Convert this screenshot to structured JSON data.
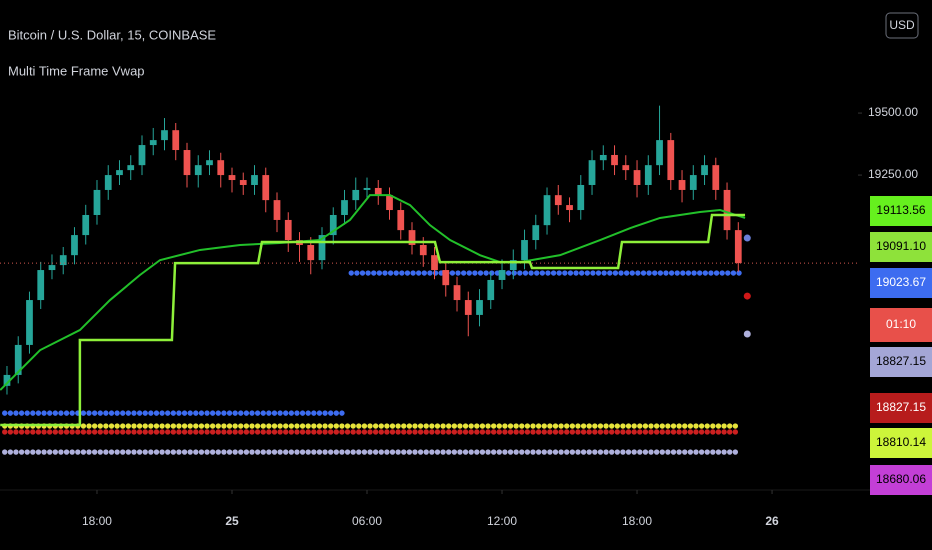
{
  "chart_data": {
    "type": "candlestick",
    "title": "Bitcoin / U.S. Dollar, 15, COINBASE",
    "subtitle": "Multi Time Frame Vwap",
    "currency_button": "USD",
    "xlim": [
      13.69,
      51.82
    ],
    "xticks": [
      {
        "value": 18,
        "label": "18:00"
      },
      {
        "value": 24,
        "label": "25"
      },
      {
        "value": 30,
        "label": "06:00"
      },
      {
        "value": 36,
        "label": "12:00"
      },
      {
        "value": 42,
        "label": "18:00"
      },
      {
        "value": 48,
        "label": "26"
      }
    ],
    "ylim": [
      17980,
      19956
    ],
    "yticks": [
      {
        "value": 19250,
        "label": "19250.00"
      },
      {
        "value": 19500,
        "label": "19500.00"
      }
    ],
    "up_color": "#26a69a",
    "down_color": "#ef5350",
    "candles": {
      "x": [
        14,
        14.5,
        15,
        15.5,
        16,
        16.5,
        17,
        17.5,
        18,
        18.5,
        19,
        19.5,
        20,
        20.5,
        21,
        21.5,
        22,
        22.5,
        23,
        23.5,
        24,
        24.5,
        25,
        25.5,
        26,
        26.5,
        27,
        27.5,
        28,
        28.5,
        29,
        29.5,
        30,
        30.5,
        31,
        31.5,
        32,
        32.5,
        33,
        33.5,
        34,
        34.5,
        35,
        35.5,
        36,
        36.5,
        37,
        37.5,
        38,
        38.5,
        39,
        39.5,
        40,
        40.5,
        41,
        41.5,
        42,
        42.5,
        43,
        43.5,
        44,
        44.5,
        45,
        45.5,
        46,
        46.5
      ],
      "open": [
        18400,
        18444,
        18565,
        18746,
        18867,
        18887,
        18927,
        19008,
        19089,
        19190,
        19250,
        19270,
        19290,
        19371,
        19391,
        19431,
        19351,
        19250,
        19290,
        19310,
        19250,
        19230,
        19210,
        19250,
        19149,
        19069,
        18988,
        18968,
        18907,
        19008,
        19089,
        19149,
        19190,
        19198,
        19169,
        19109,
        19028,
        18968,
        18927,
        18867,
        18806,
        18746,
        18686,
        18746,
        18827,
        18867,
        18907,
        18988,
        19048,
        19169,
        19129,
        19109,
        19210,
        19310,
        19331,
        19290,
        19270,
        19210,
        19290,
        19391,
        19230,
        19190,
        19250,
        19290,
        19190,
        19028
      ],
      "high": [
        18480,
        18600,
        18780,
        18900,
        18930,
        18960,
        19040,
        19130,
        19230,
        19290,
        19310,
        19330,
        19410,
        19440,
        19480,
        19460,
        19380,
        19330,
        19350,
        19340,
        19280,
        19260,
        19290,
        19280,
        19180,
        19100,
        19020,
        19000,
        19040,
        19120,
        19190,
        19240,
        19240,
        19230,
        19200,
        19140,
        19060,
        19000,
        18960,
        18900,
        18840,
        18780,
        18790,
        18860,
        18910,
        18950,
        19030,
        19090,
        19200,
        19210,
        19160,
        19250,
        19350,
        19370,
        19370,
        19330,
        19310,
        19330,
        19530,
        19420,
        19270,
        19290,
        19330,
        19320,
        19220,
        19060
      ],
      "low": [
        18365,
        18410,
        18530,
        18710,
        18830,
        18850,
        18890,
        18970,
        19050,
        19150,
        19210,
        19230,
        19250,
        19330,
        19350,
        19310,
        19200,
        19200,
        19250,
        19200,
        19180,
        19170,
        19170,
        19100,
        19020,
        18940,
        18900,
        18850,
        18870,
        18970,
        19050,
        19110,
        19150,
        19130,
        19070,
        18990,
        18930,
        18880,
        18830,
        18760,
        18700,
        18600,
        18640,
        18710,
        18790,
        18830,
        18870,
        18950,
        19010,
        19090,
        19060,
        19070,
        19170,
        19270,
        19250,
        19230,
        19160,
        19170,
        19250,
        19190,
        19140,
        19150,
        19210,
        19150,
        18990,
        18860
      ],
      "close": [
        18444,
        18565,
        18746,
        18867,
        18887,
        18927,
        19008,
        19089,
        19190,
        19250,
        19270,
        19290,
        19371,
        19391,
        19431,
        19351,
        19250,
        19290,
        19310,
        19250,
        19230,
        19210,
        19250,
        19149,
        19069,
        18988,
        18968,
        18907,
        19008,
        19089,
        19149,
        19190,
        19198,
        19169,
        19109,
        19028,
        18968,
        18927,
        18867,
        18806,
        18746,
        18686,
        18746,
        18827,
        18867,
        18907,
        18988,
        19048,
        19169,
        19129,
        19109,
        19210,
        19310,
        19331,
        19290,
        19270,
        19210,
        19290,
        19391,
        19230,
        19190,
        19250,
        19290,
        19190,
        19028,
        18895
      ]
    },
    "series": [
      {
        "color": "#22c02a",
        "step": false,
        "x": [
          13.7,
          15.47,
          17.24,
          18.58,
          19.91,
          20.8,
          22.58,
          24.36,
          26.13,
          27.91,
          29.24,
          30.13,
          31.02,
          31.91,
          32.8,
          33.69,
          35.02,
          35.91,
          36.8,
          38.58,
          40.36,
          41.69,
          43.02,
          44.8,
          45.69,
          46.8
        ],
        "values": [
          18383,
          18544,
          18625,
          18746,
          18847,
          18907,
          18948,
          18968,
          18976,
          18988,
          19069,
          19169,
          19169,
          19129,
          19048,
          18988,
          18927,
          18899,
          18899,
          18927,
          18988,
          19036,
          19077,
          19101,
          19109,
          19077
        ]
      },
      {
        "color": "#8ef03a",
        "step": true,
        "x": [
          13.7,
          17.24,
          17.24,
          21.33,
          21.47,
          25.16,
          25.33,
          33.02,
          33.24,
          37.24,
          37.33,
          41.16,
          41.33,
          45.16,
          45.33,
          46.8
        ],
        "values": [
          18242,
          18242,
          18585,
          18585,
          18895,
          18895,
          18980,
          18980,
          18899,
          18899,
          18875,
          18875,
          18980,
          18980,
          19089,
          19089
        ]
      }
    ],
    "dot_rows": [
      {
        "color": "#3d6cf0",
        "value": 18290,
        "x": [
          13.9,
          29.1
        ]
      },
      {
        "color": "#3d6cf0",
        "value": 18855,
        "x": [
          29.3,
          46.6
        ]
      },
      {
        "color": "#e6e33a",
        "value": 18238,
        "x": [
          13.9,
          46.6
        ]
      },
      {
        "color": "#cc2020",
        "value": 18214,
        "x": [
          13.9,
          46.6
        ]
      },
      {
        "color": "#aeb0dc",
        "value": 18133,
        "x": [
          13.9,
          46.6
        ]
      }
    ],
    "markers": [
      {
        "color": "#6a7fd8",
        "x": 46.9,
        "value": 18996
      },
      {
        "color": "#d01818",
        "x": 46.9,
        "value": 18762
      },
      {
        "color": "#aeb0dc",
        "x": 46.9,
        "value": 18609
      }
    ],
    "last_price_color": "#d2584f",
    "price_labels": [
      {
        "text": "19113.56",
        "color": "#66f01e",
        "text_color": "#000000"
      },
      {
        "text": "19091.10",
        "color": "#8ee23a",
        "text_color": "#000000"
      },
      {
        "text": "19023.67",
        "color": "#3d6cf0",
        "text_color": "#ffffff"
      },
      {
        "text": "01:10",
        "color": "#e8504a",
        "text_color": "#ffffff"
      },
      {
        "text": "18827.15",
        "color": "#a4a6d6",
        "text_color": "#000000"
      },
      {
        "text": "18827.15",
        "color": "#b71c1c",
        "text_color": "#ffffff"
      },
      {
        "text": "18810.14",
        "color": "#cdf53a",
        "text_color": "#000000"
      },
      {
        "text": "18680.06",
        "color": "#c33fd6",
        "text_color": "#000000"
      }
    ]
  }
}
